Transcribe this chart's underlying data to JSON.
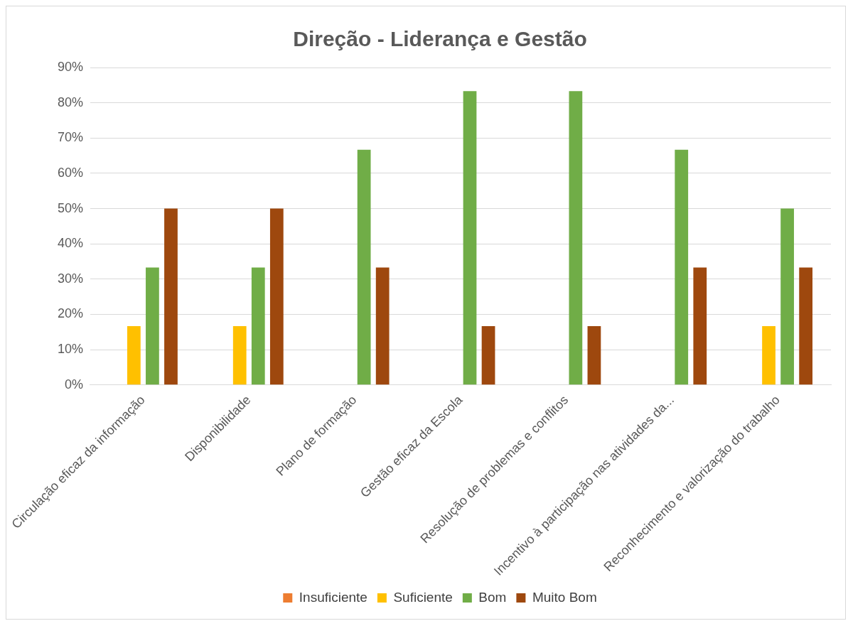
{
  "chart_data": {
    "type": "bar",
    "title": "Direção - Liderança e Gestão",
    "categories": [
      "Circulação eficaz da informação",
      "Disponibilidade",
      "Plano de formação",
      "Gestão eficaz da Escola",
      "Resolução de problemas e conflitos",
      "Incentivo à participação nas atividades da...",
      "Reconhecimento e valorização do trabalho"
    ],
    "series": [
      {
        "name": "Insuficiente",
        "color": "#ed7d31",
        "values": [
          0,
          0,
          0,
          0,
          0,
          0,
          0
        ]
      },
      {
        "name": "Suficiente",
        "color": "#ffc000",
        "values": [
          16.7,
          16.7,
          0,
          0,
          0,
          0,
          16.7
        ]
      },
      {
        "name": "Bom",
        "color": "#70ad47",
        "values": [
          33.3,
          33.3,
          66.7,
          83.3,
          83.3,
          66.7,
          50
        ]
      },
      {
        "name": "Muito Bom",
        "color": "#9e480e",
        "values": [
          50,
          50,
          33.3,
          16.7,
          16.7,
          33.3,
          33.3
        ]
      }
    ],
    "ylim": [
      0,
      90
    ],
    "yticks": [
      {
        "value": 0,
        "label": "0%"
      },
      {
        "value": 10,
        "label": "10%"
      },
      {
        "value": 20,
        "label": "20%"
      },
      {
        "value": 30,
        "label": "30%"
      },
      {
        "value": 40,
        "label": "40%"
      },
      {
        "value": 50,
        "label": "50%"
      },
      {
        "value": 60,
        "label": "60%"
      },
      {
        "value": 70,
        "label": "70%"
      },
      {
        "value": 80,
        "label": "80%"
      },
      {
        "value": 90,
        "label": "90%"
      }
    ],
    "grid": "y",
    "legend": "bottom"
  }
}
